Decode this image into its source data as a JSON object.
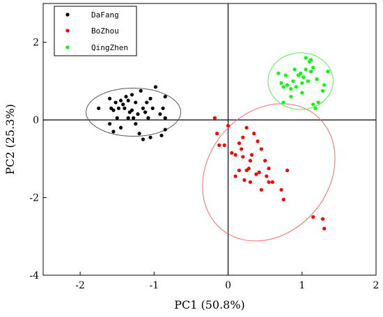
{
  "chart_data": {
    "type": "scatter",
    "xlabel": "PC1 (50.8%)",
    "ylabel": "PC2 (25.3%)",
    "xlim": [
      -2.5,
      2.0
    ],
    "ylim": [
      -4.0,
      3.0
    ],
    "xticks": [
      "-2",
      "-1",
      "0",
      "1",
      "2"
    ],
    "yticks": [
      "-4",
      "-2",
      "0",
      "2"
    ],
    "legend_position": "top-left",
    "series": [
      {
        "name": "DaFang",
        "color": "#000000",
        "points": [
          [
            -1.75,
            0.3
          ],
          [
            -1.6,
            0.55
          ],
          [
            -1.58,
            0.3
          ],
          [
            -1.55,
            0.25
          ],
          [
            -1.52,
            0.45
          ],
          [
            -1.5,
            0.05
          ],
          [
            -1.48,
            0.3
          ],
          [
            -1.45,
            0.5
          ],
          [
            -1.42,
            0.4
          ],
          [
            -1.4,
            0.3
          ],
          [
            -1.38,
            0.6
          ],
          [
            -1.35,
            0.5
          ],
          [
            -1.35,
            0.05
          ],
          [
            -1.33,
            0.2
          ],
          [
            -1.3,
            0.65
          ],
          [
            -1.3,
            0.25
          ],
          [
            -1.28,
            0.05
          ],
          [
            -1.25,
            0.45
          ],
          [
            -1.22,
            0.15
          ],
          [
            -1.18,
            0.75
          ],
          [
            -1.15,
            0.3
          ],
          [
            -1.12,
            0.2
          ],
          [
            -1.1,
            0.45
          ],
          [
            -1.08,
            0.05
          ],
          [
            -1.05,
            0.55
          ],
          [
            -1.02,
            0.3
          ],
          [
            -0.98,
            0.85
          ],
          [
            -0.92,
            0.15
          ],
          [
            -0.88,
            0.3
          ],
          [
            -0.85,
            0.6
          ],
          [
            -0.85,
            0.05
          ],
          [
            -0.9,
            -0.4
          ],
          [
            -1.2,
            -0.35
          ],
          [
            -1.25,
            -0.1
          ],
          [
            -1.55,
            -0.3
          ],
          [
            -1.6,
            -0.1
          ],
          [
            -1.45,
            -0.2
          ],
          [
            -1.15,
            -0.5
          ],
          [
            -1.05,
            -0.45
          ],
          [
            -0.85,
            -0.25
          ]
        ]
      },
      {
        "name": "BoZhou",
        "color": "#ff0000",
        "points": [
          [
            -0.18,
            0.05
          ],
          [
            -0.15,
            -0.35
          ],
          [
            -0.12,
            -0.65
          ],
          [
            -0.05,
            -0.65
          ],
          [
            0.0,
            -0.15
          ],
          [
            0.05,
            -0.85
          ],
          [
            0.1,
            -0.9
          ],
          [
            0.15,
            -0.6
          ],
          [
            0.15,
            -1.3
          ],
          [
            0.18,
            -0.75
          ],
          [
            0.2,
            -0.45
          ],
          [
            0.2,
            -0.95
          ],
          [
            0.22,
            -1.55
          ],
          [
            0.25,
            -1.3
          ],
          [
            0.25,
            -0.2
          ],
          [
            0.28,
            -1.25
          ],
          [
            0.3,
            -1.05
          ],
          [
            0.3,
            -1.6
          ],
          [
            0.32,
            -0.9
          ],
          [
            0.35,
            -0.35
          ],
          [
            0.38,
            -1.4
          ],
          [
            0.4,
            -0.55
          ],
          [
            0.42,
            -1.35
          ],
          [
            0.45,
            -1.8
          ],
          [
            0.45,
            -0.75
          ],
          [
            0.5,
            -1.05
          ],
          [
            0.52,
            -1.45
          ],
          [
            0.55,
            -1.25
          ],
          [
            0.55,
            -1.6
          ],
          [
            0.6,
            -1.6
          ],
          [
            0.72,
            -1.8
          ],
          [
            0.75,
            -2.05
          ],
          [
            0.8,
            -1.3
          ],
          [
            1.15,
            -2.5
          ],
          [
            1.28,
            -2.55
          ],
          [
            1.3,
            -2.8
          ],
          [
            0.1,
            -1.45
          ]
        ]
      },
      {
        "name": "QingZhen",
        "color": "#00ff00",
        "points": [
          [
            0.68,
            1.2
          ],
          [
            0.72,
            0.95
          ],
          [
            0.75,
            0.45
          ],
          [
            0.75,
            0.85
          ],
          [
            0.78,
            1.15
          ],
          [
            0.8,
            0.9
          ],
          [
            0.85,
            0.8
          ],
          [
            0.88,
            1.0
          ],
          [
            0.9,
            1.3
          ],
          [
            0.92,
            0.85
          ],
          [
            0.95,
            1.15
          ],
          [
            0.98,
            1.2
          ],
          [
            1.0,
            0.95
          ],
          [
            1.02,
            1.1
          ],
          [
            1.05,
            1.6
          ],
          [
            1.05,
            1.3
          ],
          [
            1.08,
            1.0
          ],
          [
            1.1,
            1.5
          ],
          [
            1.12,
            1.25
          ],
          [
            1.15,
            0.4
          ],
          [
            1.15,
            1.35
          ],
          [
            1.18,
            0.3
          ],
          [
            1.2,
            1.05
          ],
          [
            1.22,
            0.45
          ],
          [
            1.28,
            0.75
          ],
          [
            1.3,
            0.9
          ],
          [
            1.35,
            1.25
          ],
          [
            1.12,
            1.55
          ],
          [
            0.85,
            0.6
          ],
          [
            1.0,
            0.7
          ]
        ]
      }
    ],
    "ellipses": [
      {
        "series": "DaFang",
        "color": "#555555",
        "cx": -1.28,
        "cy": 0.2,
        "rx": 0.64,
        "ry": 0.62,
        "angle": 0
      },
      {
        "series": "BoZhou",
        "color": "#ff6666",
        "cx": 0.55,
        "cy": -1.35,
        "rx": 1.0,
        "ry": 1.55,
        "angle": -50
      },
      {
        "series": "QingZhen",
        "color": "#55ee55",
        "cx": 0.98,
        "cy": 1.0,
        "rx": 0.44,
        "ry": 0.73,
        "angle": 0
      }
    ]
  }
}
